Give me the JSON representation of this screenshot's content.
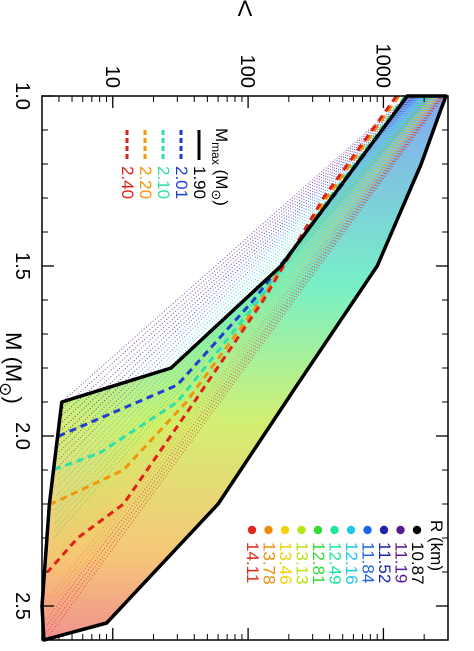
{
  "chart_data": {
    "type": "scatter",
    "x_axis": {
      "label": "M (M",
      "label_symbol": "⊙",
      "label_close": ")",
      "range": [
        1.0,
        2.6
      ],
      "ticks": [
        {
          "value": 1.0,
          "label": "1.0"
        },
        {
          "value": 1.5,
          "label": "1.5"
        },
        {
          "value": 2.0,
          "label": "2.0"
        },
        {
          "value": 2.5,
          "label": "2.5"
        }
      ]
    },
    "y_axis": {
      "label": "Λ",
      "scale": "log",
      "range": [
        3,
        3000
      ],
      "ticks": [
        {
          "value": 10,
          "label": "10"
        },
        {
          "value": 100,
          "label": "100"
        },
        {
          "value": 1000,
          "label": "1000"
        }
      ]
    },
    "envelope": [
      {
        "m": 1.0,
        "lambda": 2900
      },
      {
        "m": 1.0,
        "lambda": 1500
      },
      {
        "m": 1.5,
        "lambda": 175
      },
      {
        "m": 1.8,
        "lambda": 27
      },
      {
        "m": 1.9,
        "lambda": 4.2
      },
      {
        "m": 2.2,
        "lambda": 3.4
      },
      {
        "m": 2.5,
        "lambda": 3.0
      },
      {
        "m": 2.6,
        "lambda": 3.1
      },
      {
        "m": 2.55,
        "lambda": 9
      },
      {
        "m": 2.2,
        "lambda": 60
      },
      {
        "m": 1.85,
        "lambda": 230
      },
      {
        "m": 1.5,
        "lambda": 900
      },
      {
        "m": 1.2,
        "lambda": 1900
      },
      {
        "m": 1.05,
        "lambda": 2600
      }
    ],
    "mmax_legend": {
      "title": "M",
      "title_sub": "max",
      "title_unit": " (M",
      "title_symbol": "⊙",
      "title_close": ")",
      "entries": [
        {
          "label": "1.90",
          "color": "#000000",
          "style": "solid"
        },
        {
          "label": "2.01",
          "color": "#1f3fd0",
          "style": "dashed"
        },
        {
          "label": "2.10",
          "color": "#2fe0a8",
          "style": "dashed"
        },
        {
          "label": "2.20",
          "color": "#f0960a",
          "style": "dashed"
        },
        {
          "label": "2.40",
          "color": "#e0201a",
          "style": "dashed"
        }
      ]
    },
    "radius_legend": {
      "title": "R (km)",
      "entries": [
        {
          "label": "10.87",
          "color": "#000000"
        },
        {
          "label": "11.19",
          "color": "#5a1a8c"
        },
        {
          "label": "11.52",
          "color": "#2020b0"
        },
        {
          "label": "11.84",
          "color": "#1e64e6"
        },
        {
          "label": "12.16",
          "color": "#1ec8e6"
        },
        {
          "label": "12.49",
          "color": "#1ee6a0"
        },
        {
          "label": "12.81",
          "color": "#32dc32"
        },
        {
          "label": "13.13",
          "color": "#b4e614"
        },
        {
          "label": "13.46",
          "color": "#f0d20a"
        },
        {
          "label": "13.78",
          "color": "#f08c0a"
        },
        {
          "label": "14.11",
          "color": "#e0281e"
        }
      ]
    },
    "series": [
      {
        "name": "1.90",
        "color": "#000000",
        "points": [
          [
            1.0,
            1500
          ],
          [
            1.5,
            175
          ],
          [
            1.8,
            27
          ],
          [
            1.9,
            4.2
          ]
        ]
      },
      {
        "name": "2.01",
        "color": "#1f3fd0",
        "points": [
          [
            1.0,
            1500
          ],
          [
            1.3,
            420
          ],
          [
            1.6,
            110
          ],
          [
            1.85,
            30
          ],
          [
            2.0,
            4.0
          ]
        ]
      },
      {
        "name": "2.10",
        "color": "#2fe0a8",
        "points": [
          [
            1.0,
            1450
          ],
          [
            1.3,
            400
          ],
          [
            1.6,
            120
          ],
          [
            1.9,
            30
          ],
          [
            2.05,
            8
          ],
          [
            2.1,
            3.6
          ]
        ]
      },
      {
        "name": "2.20",
        "color": "#f0960a",
        "points": [
          [
            1.0,
            1300
          ],
          [
            1.3,
            380
          ],
          [
            1.6,
            125
          ],
          [
            1.9,
            35
          ],
          [
            2.1,
            12
          ],
          [
            2.2,
            3.5
          ]
        ]
      },
      {
        "name": "2.40",
        "color": "#e0201a",
        "points": [
          [
            1.0,
            1250
          ],
          [
            1.3,
            360
          ],
          [
            1.6,
            130
          ],
          [
            1.9,
            40
          ],
          [
            2.2,
            12
          ],
          [
            2.3,
            5.5
          ],
          [
            2.4,
            3.3
          ]
        ]
      }
    ]
  }
}
